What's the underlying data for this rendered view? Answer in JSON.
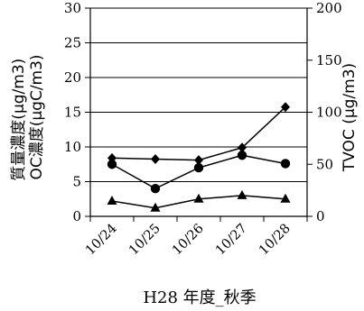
{
  "chart_data": {
    "type": "line",
    "categories": [
      "10/24",
      "10/25",
      "10/26",
      "10/27",
      "10/28"
    ],
    "xlabel": "H28 年度_秋季",
    "ylabel_left_lines": [
      "質量濃度(μg/m3)",
      "OC濃度(μgC/m3)"
    ],
    "ylabel_right": "TVOC (μg/m3)",
    "ylim_left": [
      0,
      30
    ],
    "yticks_left": [
      0,
      5,
      10,
      15,
      20,
      25,
      30
    ],
    "ylim_right": [
      0,
      200
    ],
    "yticks_right": [
      0,
      50,
      100,
      150,
      200
    ],
    "grid": true,
    "series": [
      {
        "axis": "left",
        "marker": "circle",
        "color": "#000000",
        "values": [
          7.5,
          4.0,
          7.0,
          8.8,
          7.6
        ]
      },
      {
        "axis": "left",
        "marker": "triangle",
        "color": "#000000",
        "values": [
          2.2,
          1.2,
          2.5,
          3.0,
          2.5
        ]
      },
      {
        "axis": "right",
        "marker": "diamond",
        "color": "#000000",
        "values": [
          56,
          55,
          54,
          66,
          105
        ]
      }
    ]
  }
}
